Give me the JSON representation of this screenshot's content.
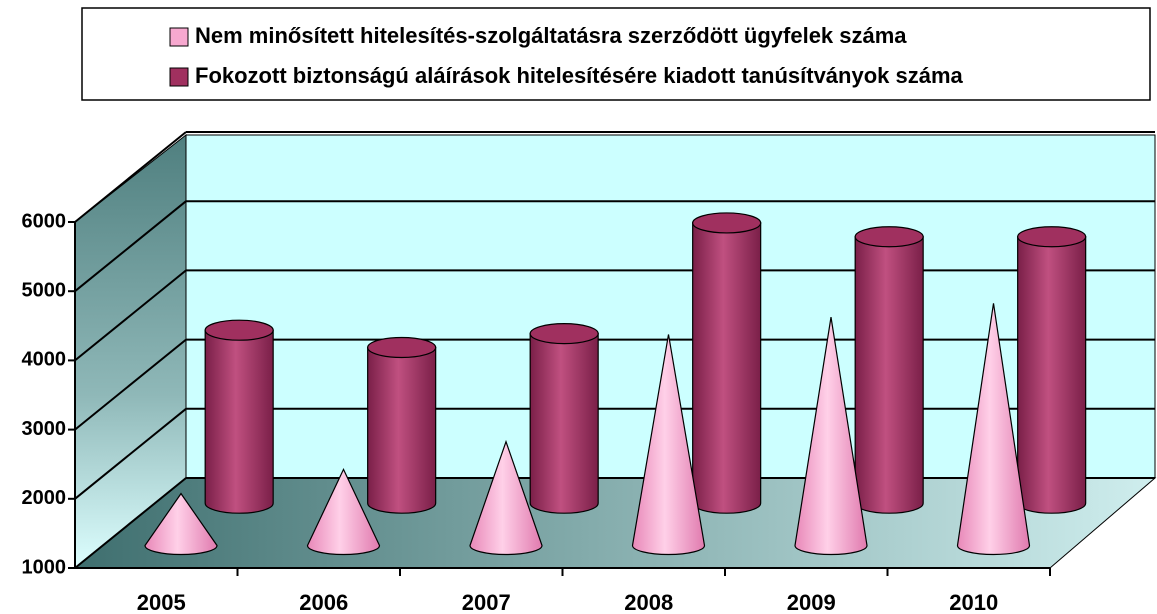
{
  "chart_data": {
    "type": "bar3d",
    "categories": [
      "2005",
      "2006",
      "2007",
      "2008",
      "2009",
      "2010"
    ],
    "series": [
      {
        "name": "Nem minősített hitelesítés-szolgáltatásra szerződött ügyfelek száma",
        "color": "#f7a8cf",
        "shape": "cone",
        "values": [
          1750,
          2100,
          2500,
          4050,
          4300,
          4500
        ]
      },
      {
        "name": "Fokozott biztonságú aláírások hitelesítésére kiadott tanúsítványok száma",
        "color": "#a0305f",
        "shape": "cylinder",
        "values": [
          3500,
          3250,
          3450,
          5050,
          4850,
          4850
        ]
      }
    ],
    "ylim": [
      1000,
      6000
    ],
    "yticks": [
      1000,
      2000,
      3000,
      4000,
      5000,
      6000
    ],
    "grid": true,
    "legend": "top"
  }
}
